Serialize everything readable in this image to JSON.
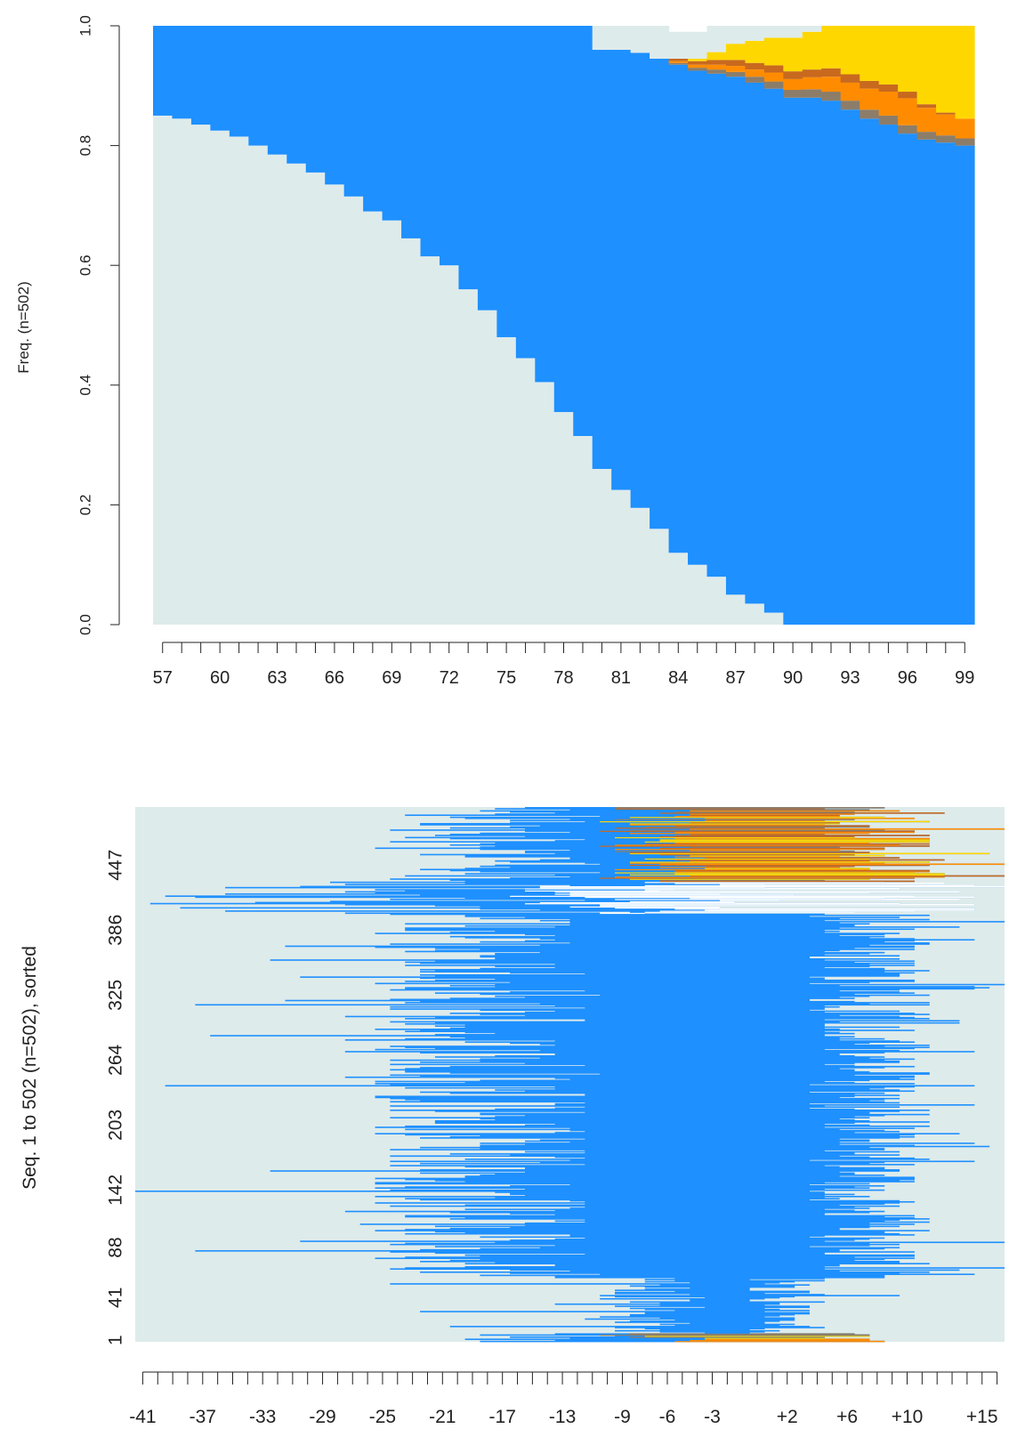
{
  "colors": {
    "background_state": "#DEEBEB",
    "state_blue": "#1E90FF",
    "state_gold": "#FFD700",
    "state_orange": "#FF8C00",
    "state_brown": "#C8691E",
    "state_gray": "#8C7D69",
    "missing": "#FFFFFF",
    "axis": "#222222"
  },
  "chart_data": [
    {
      "type": "area",
      "subtype": "state distribution (stacked)",
      "ylabel": "Freq. (n=502)",
      "xlabel": "",
      "ylim": [
        0.0,
        1.0
      ],
      "yticks": [
        "0.0",
        "0.2",
        "0.4",
        "0.6",
        "0.8",
        "1.0"
      ],
      "x_first": 57,
      "x_last": 99,
      "xtick_labels": [
        "57",
        "60",
        "63",
        "66",
        "69",
        "72",
        "75",
        "78",
        "81",
        "84",
        "87",
        "90",
        "93",
        "96",
        "99"
      ],
      "grid": false,
      "legend": "none",
      "states_bottom_to_top": [
        "light",
        "blue",
        "gray",
        "orange",
        "brown",
        "gold",
        "light_top"
      ],
      "series": [
        {
          "state": "light",
          "values": [
            0.85,
            0.845,
            0.835,
            0.825,
            0.815,
            0.8,
            0.785,
            0.77,
            0.755,
            0.735,
            0.715,
            0.69,
            0.675,
            0.645,
            0.615,
            0.6,
            0.56,
            0.525,
            0.48,
            0.445,
            0.405,
            0.355,
            0.315,
            0.26,
            0.225,
            0.195,
            0.16,
            0.12,
            0.1,
            0.08,
            0.05,
            0.035,
            0.02,
            0.0,
            0.0,
            0.0,
            0.0,
            0.0,
            0.0,
            0.0,
            0.0,
            0.0,
            0.0
          ]
        },
        {
          "state": "blue",
          "values": [
            0.15,
            0.155,
            0.165,
            0.175,
            0.185,
            0.2,
            0.215,
            0.23,
            0.245,
            0.265,
            0.285,
            0.31,
            0.325,
            0.355,
            0.385,
            0.4,
            0.44,
            0.475,
            0.52,
            0.555,
            0.595,
            0.645,
            0.685,
            0.7,
            0.735,
            0.76,
            0.785,
            0.815,
            0.825,
            0.84,
            0.865,
            0.87,
            0.875,
            0.88,
            0.88,
            0.875,
            0.86,
            0.845,
            0.835,
            0.82,
            0.81,
            0.805,
            0.8
          ]
        },
        {
          "state": "gray",
          "values": [
            0,
            0,
            0,
            0,
            0,
            0,
            0,
            0,
            0,
            0,
            0,
            0,
            0,
            0,
            0,
            0,
            0,
            0,
            0,
            0,
            0,
            0,
            0,
            0,
            0,
            0,
            0,
            0.003,
            0.005,
            0.007,
            0.008,
            0.01,
            0.012,
            0.013,
            0.014,
            0.015,
            0.015,
            0.015,
            0.015,
            0.014,
            0.013,
            0.012,
            0.012
          ]
        },
        {
          "state": "orange",
          "values": [
            0,
            0,
            0,
            0,
            0,
            0,
            0,
            0,
            0,
            0,
            0,
            0,
            0,
            0,
            0,
            0,
            0,
            0,
            0,
            0,
            0,
            0,
            0,
            0,
            0,
            0,
            0,
            0.003,
            0.005,
            0.008,
            0.01,
            0.012,
            0.015,
            0.018,
            0.02,
            0.025,
            0.03,
            0.035,
            0.04,
            0.045,
            0.04,
            0.035,
            0.033
          ]
        },
        {
          "state": "brown",
          "values": [
            0,
            0,
            0,
            0,
            0,
            0,
            0,
            0,
            0,
            0,
            0,
            0,
            0,
            0,
            0,
            0,
            0,
            0,
            0,
            0,
            0,
            0,
            0,
            0,
            0,
            0,
            0,
            0.004,
            0.006,
            0.008,
            0.01,
            0.011,
            0.012,
            0.013,
            0.013,
            0.014,
            0.014,
            0.013,
            0.012,
            0.011,
            0.006,
            0.003,
            0.0
          ]
        },
        {
          "state": "gold",
          "values": [
            0,
            0,
            0,
            0,
            0,
            0,
            0,
            0,
            0,
            0,
            0,
            0,
            0,
            0,
            0,
            0,
            0,
            0,
            0,
            0,
            0,
            0,
            0,
            0,
            0,
            0,
            0,
            0,
            0.004,
            0.013,
            0.027,
            0.037,
            0.046,
            0.056,
            0.063,
            0.071,
            0.081,
            0.092,
            0.103,
            0.115,
            0.136,
            0.155,
            0.167
          ]
        },
        {
          "state": "light_top",
          "values": [
            0,
            0,
            0,
            0,
            0,
            0,
            0,
            0,
            0,
            0,
            0,
            0,
            0,
            0,
            0,
            0,
            0,
            0,
            0,
            0,
            0,
            0,
            0,
            0.04,
            0.04,
            0.045,
            0.055,
            0.045,
            0.045,
            0.045,
            0.045,
            0.045,
            0.045,
            0.045,
            0.045,
            0.045,
            0.045,
            0.045,
            0.045,
            0.045,
            0.045,
            0.045,
            0.045
          ]
        }
      ]
    },
    {
      "type": "heatmap",
      "subtype": "sequence index plot (sorted)",
      "ylabel": "Seq. 1 to 502 (n=502), sorted",
      "xlabel": "",
      "n_sequences": 502,
      "ytick_labels": [
        "1",
        "41",
        "88",
        "142",
        "203",
        "264",
        "325",
        "386",
        "447"
      ],
      "x_first": -41,
      "x_last": 16,
      "xtick_labels": [
        "-41",
        "-37",
        "-33",
        "-29",
        "-25",
        "-21",
        "-17",
        "-13",
        "-9",
        "-6",
        "-3",
        "+2",
        "+6",
        "+10",
        "+15"
      ],
      "grid": false,
      "legend": "none",
      "groups": [
        {
          "seq_from": 1,
          "seq_to": 8,
          "lead_start": [
            -22,
            -9
          ],
          "blue_start": [
            -18,
            -8
          ],
          "end": [
            3,
            8
          ],
          "tail": [
            "orange",
            "gray",
            "gold"
          ],
          "tail_start": [
            -11,
            -2
          ]
        },
        {
          "seq_from": 9,
          "seq_to": 60,
          "lead_start": [
            -11,
            -3
          ],
          "blue_start": [
            -6,
            -2
          ],
          "end": [
            -1,
            4
          ],
          "tail": [],
          "tail_start": null
        },
        {
          "seq_from": 61,
          "seq_to": 402,
          "lead_start": [
            -25,
            -10
          ],
          "blue_start": [
            -11,
            -10
          ],
          "end": [
            3,
            11
          ],
          "tail": [],
          "tail_start": null
        },
        {
          "seq_from": 403,
          "seq_to": 432,
          "lead_start": [
            -40,
            -6
          ],
          "blue_start": [
            -20,
            -7
          ],
          "end": [
            -8,
            15
          ],
          "tail": [
            "white"
          ],
          "tail_start": [
            -16,
            -2
          ]
        },
        {
          "seq_from": 433,
          "seq_to": 502,
          "lead_start": [
            -25,
            -10
          ],
          "blue_start": [
            -14,
            -8
          ],
          "end": [
            4,
            12
          ],
          "tail": [
            "gold",
            "brown",
            "gray",
            "orange"
          ],
          "tail_start": [
            -10,
            -3
          ]
        }
      ]
    }
  ]
}
